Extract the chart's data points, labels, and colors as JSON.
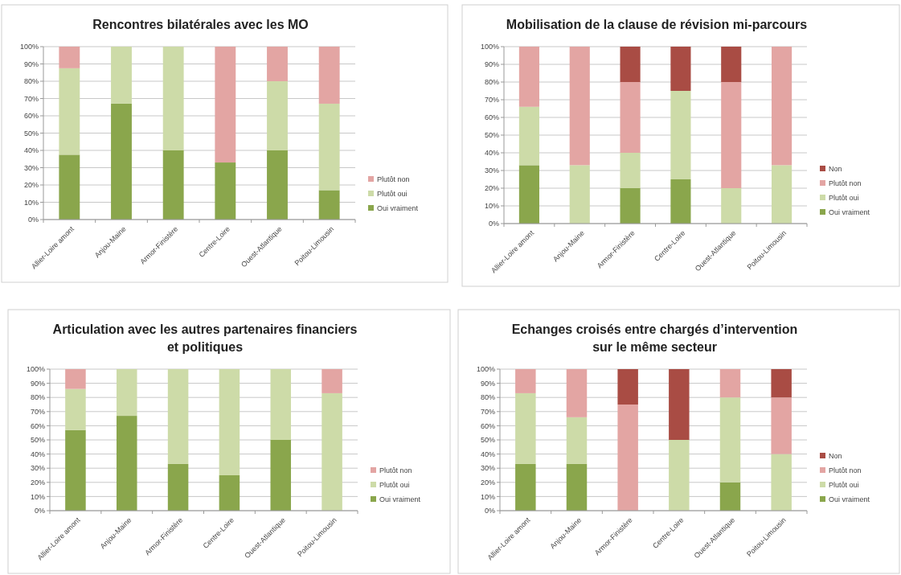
{
  "chart_data": [
    {
      "type": "bar",
      "title": "Rencontres bilatérales avec les MO",
      "stacked": true,
      "grid": "y",
      "legend": "right",
      "categories": [
        "Allier-Loire amont",
        "Anjou-Maine",
        "Armor-Finistère",
        "Centre-Loire",
        "Ouest-Atlantique",
        "Poitou-Limousin"
      ],
      "ylim": [
        0,
        100
      ],
      "yticks": [
        {
          "value": 0,
          "label": "0%"
        },
        {
          "value": 10,
          "label": "10%"
        },
        {
          "value": 20,
          "label": "20%"
        },
        {
          "value": 30,
          "label": "30%"
        },
        {
          "value": 40,
          "label": "40%"
        },
        {
          "value": 50,
          "label": "50%"
        },
        {
          "value": 60,
          "label": "60%"
        },
        {
          "value": 70,
          "label": "70%"
        },
        {
          "value": 80,
          "label": "80%"
        },
        {
          "value": 90,
          "label": "90%"
        },
        {
          "value": 100,
          "label": "100%"
        }
      ],
      "series": [
        {
          "name": "Oui vraiment",
          "color": "#8aa64c",
          "values": [
            37.5,
            67,
            40,
            33,
            40,
            17
          ]
        },
        {
          "name": "Plutôt oui",
          "color": "#cddba8",
          "values": [
            50,
            33,
            60,
            0,
            40,
            50
          ]
        },
        {
          "name": "Plutôt non",
          "color": "#e3a5a3",
          "values": [
            12.5,
            0,
            0,
            67,
            20,
            33
          ]
        }
      ]
    },
    {
      "type": "bar",
      "title": "Mobilisation de la clause de révision mi-parcours",
      "stacked": true,
      "grid": "y",
      "legend": "right",
      "categories": [
        "Allier-Loire amont",
        "Anjou-Maine",
        "Armor-Finistère",
        "Centre-Loire",
        "Ouest-Atlantique",
        "Poitou-Limousin"
      ],
      "ylim": [
        0,
        100
      ],
      "yticks": [
        {
          "value": 0,
          "label": "0%"
        },
        {
          "value": 10,
          "label": "10%"
        },
        {
          "value": 20,
          "label": "20%"
        },
        {
          "value": 30,
          "label": "30%"
        },
        {
          "value": 40,
          "label": "40%"
        },
        {
          "value": 50,
          "label": "50%"
        },
        {
          "value": 60,
          "label": "60%"
        },
        {
          "value": 70,
          "label": "70%"
        },
        {
          "value": 80,
          "label": "80%"
        },
        {
          "value": 90,
          "label": "90%"
        },
        {
          "value": 100,
          "label": "100%"
        }
      ],
      "series": [
        {
          "name": "Oui vraiment",
          "color": "#8aa64c",
          "values": [
            33,
            0,
            20,
            25,
            0,
            0
          ]
        },
        {
          "name": "Plutôt oui",
          "color": "#cddba8",
          "values": [
            33,
            33,
            20,
            50,
            20,
            33
          ]
        },
        {
          "name": "Plutôt non",
          "color": "#e3a5a3",
          "values": [
            34,
            67,
            40,
            0,
            60,
            67
          ]
        },
        {
          "name": "Non",
          "color": "#a94c44",
          "values": [
            0,
            0,
            20,
            25,
            20,
            0
          ]
        }
      ]
    },
    {
      "type": "bar",
      "title": "Articulation avec les autres partenaires financiers et politiques",
      "stacked": true,
      "grid": "y",
      "legend": "right",
      "categories": [
        "Allier-Loire amont",
        "Anjou-Maine",
        "Armor-Finistère",
        "Centre-Loire",
        "Ouest-Atlantique",
        "Poitou-Limousin"
      ],
      "ylim": [
        0,
        100
      ],
      "yticks": [
        {
          "value": 0,
          "label": "0%"
        },
        {
          "value": 10,
          "label": "10%"
        },
        {
          "value": 20,
          "label": "20%"
        },
        {
          "value": 30,
          "label": "30%"
        },
        {
          "value": 40,
          "label": "40%"
        },
        {
          "value": 50,
          "label": "50%"
        },
        {
          "value": 60,
          "label": "60%"
        },
        {
          "value": 70,
          "label": "70%"
        },
        {
          "value": 80,
          "label": "80%"
        },
        {
          "value": 90,
          "label": "90%"
        },
        {
          "value": 100,
          "label": "100%"
        }
      ],
      "series": [
        {
          "name": "Oui vraiment",
          "color": "#8aa64c",
          "values": [
            57,
            67,
            33,
            25,
            50,
            0
          ]
        },
        {
          "name": "Plutôt oui",
          "color": "#cddba8",
          "values": [
            29,
            33,
            67,
            75,
            50,
            83
          ]
        },
        {
          "name": "Plutôt non",
          "color": "#e3a5a3",
          "values": [
            14,
            0,
            0,
            0,
            0,
            17
          ]
        }
      ]
    },
    {
      "type": "bar",
      "title": "Echanges croisés entre chargés d’intervention sur le même secteur",
      "stacked": true,
      "grid": "y",
      "legend": "right",
      "categories": [
        "Allier-Loire amont",
        "Anjou-Maine",
        "Armor-Finistère",
        "Centre-Loire",
        "Ouest-Atlantique",
        "Poitou-Limousin"
      ],
      "ylim": [
        0,
        100
      ],
      "yticks": [
        {
          "value": 0,
          "label": "0%"
        },
        {
          "value": 10,
          "label": "10%"
        },
        {
          "value": 20,
          "label": "20%"
        },
        {
          "value": 30,
          "label": "30%"
        },
        {
          "value": 40,
          "label": "40%"
        },
        {
          "value": 50,
          "label": "50%"
        },
        {
          "value": 60,
          "label": "60%"
        },
        {
          "value": 70,
          "label": "70%"
        },
        {
          "value": 80,
          "label": "80%"
        },
        {
          "value": 90,
          "label": "90%"
        },
        {
          "value": 100,
          "label": "100%"
        }
      ],
      "series": [
        {
          "name": "Oui vraiment",
          "color": "#8aa64c",
          "values": [
            33,
            33,
            0,
            0,
            20,
            0
          ]
        },
        {
          "name": "Plutôt oui",
          "color": "#cddba8",
          "values": [
            50,
            33,
            0,
            50,
            60,
            40
          ]
        },
        {
          "name": "Plutôt non",
          "color": "#e3a5a3",
          "values": [
            17,
            34,
            75,
            0,
            20,
            40
          ]
        },
        {
          "name": "Non",
          "color": "#a94c44",
          "values": [
            0,
            0,
            25,
            50,
            0,
            20
          ]
        }
      ]
    }
  ]
}
